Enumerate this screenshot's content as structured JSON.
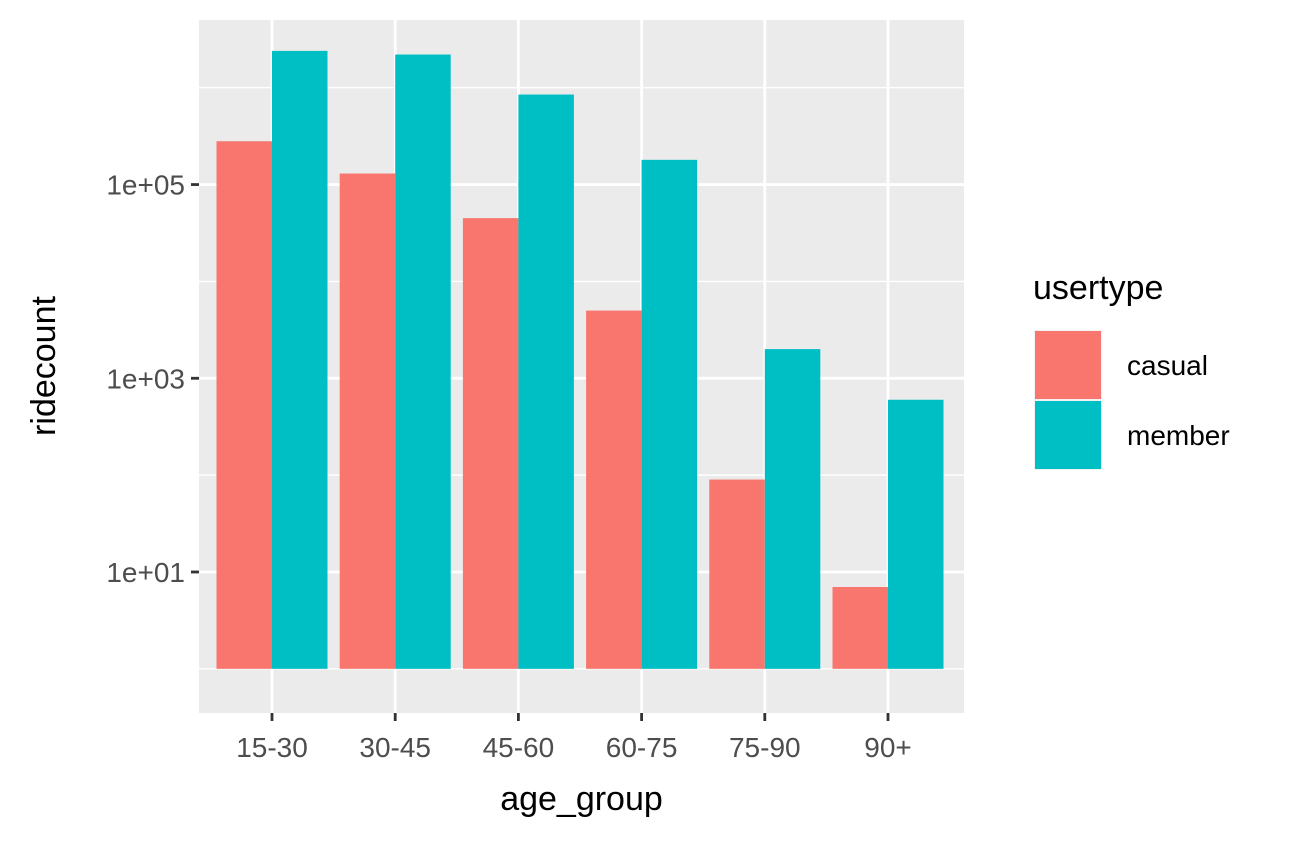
{
  "chart_data": {
    "type": "bar",
    "scale": "log10",
    "title": "",
    "xlabel": "age_group",
    "ylabel": "ridecount",
    "categories": [
      "15-30",
      "30-45",
      "45-60",
      "60-75",
      "75-90",
      "90+"
    ],
    "series": [
      {
        "name": "casual",
        "color": "#F8766D",
        "values": [
          280000,
          130000,
          45000,
          5000,
          90,
          7
        ]
      },
      {
        "name": "member",
        "color": "#00BFC4",
        "values": [
          2400000,
          2200000,
          850000,
          180000,
          2000,
          600
        ]
      }
    ],
    "yticks": [
      {
        "value": 10,
        "label": "1e+01"
      },
      {
        "value": 1000,
        "label": "1e+03"
      },
      {
        "value": 100000,
        "label": "1e+05"
      }
    ],
    "ylim": [
      0.35,
      5000000
    ],
    "bar_base": 1,
    "grid": true,
    "panel_background": "#EBEBEB",
    "grid_color": "#FFFFFF",
    "legend": {
      "title": "usertype",
      "position": "right"
    }
  }
}
